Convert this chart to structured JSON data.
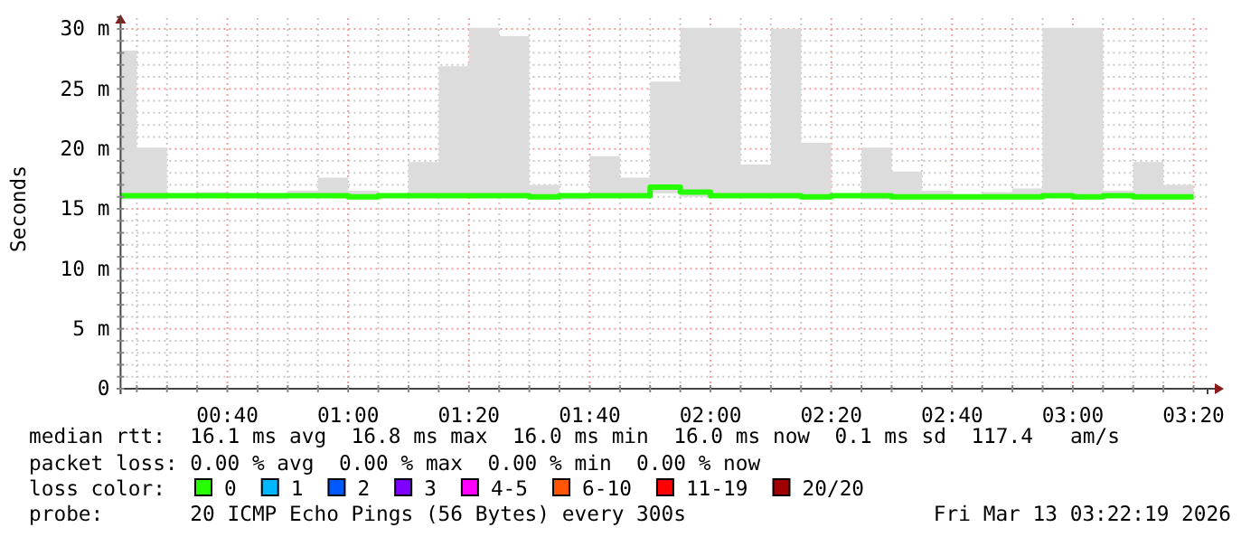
{
  "chart_data": {
    "type": "step",
    "ylabel": "Seconds",
    "legend_title": "loss color:",
    "legend": "bottom",
    "grid": true,
    "line_style": "solid",
    "xlim": [
      0.3719,
      3.3719
    ],
    "ylim": [
      0,
      31
    ],
    "xticks": [
      {
        "value": 0.4167,
        "label": null
      },
      {
        "value": 0.5,
        "label": null
      },
      {
        "value": 0.5833,
        "label": null
      },
      {
        "value": 0.6667,
        "label": "00:40"
      },
      {
        "value": 0.75,
        "label": null
      },
      {
        "value": 0.8333,
        "label": null
      },
      {
        "value": 0.9167,
        "label": null
      },
      {
        "value": 1,
        "label": "01:00"
      },
      {
        "value": 1.0833,
        "label": null
      },
      {
        "value": 1.1667,
        "label": null
      },
      {
        "value": 1.25,
        "label": null
      },
      {
        "value": 1.3333,
        "label": "01:20"
      },
      {
        "value": 1.4167,
        "label": null
      },
      {
        "value": 1.5,
        "label": null
      },
      {
        "value": 1.5833,
        "label": null
      },
      {
        "value": 1.6667,
        "label": "01:40"
      },
      {
        "value": 1.75,
        "label": null
      },
      {
        "value": 1.8333,
        "label": null
      },
      {
        "value": 1.9167,
        "label": null
      },
      {
        "value": 2,
        "label": "02:00"
      },
      {
        "value": 2.0833,
        "label": null
      },
      {
        "value": 2.1667,
        "label": null
      },
      {
        "value": 2.25,
        "label": null
      },
      {
        "value": 2.3333,
        "label": "02:20"
      },
      {
        "value": 2.4167,
        "label": null
      },
      {
        "value": 2.5,
        "label": null
      },
      {
        "value": 2.5833,
        "label": null
      },
      {
        "value": 2.6667,
        "label": "02:40"
      },
      {
        "value": 2.75,
        "label": null
      },
      {
        "value": 2.8333,
        "label": null
      },
      {
        "value": 2.9167,
        "label": null
      },
      {
        "value": 3,
        "label": "03:00"
      },
      {
        "value": 3.0833,
        "label": null
      },
      {
        "value": 3.1667,
        "label": null
      },
      {
        "value": 3.25,
        "label": null
      },
      {
        "value": 3.3333,
        "label": "03:20"
      }
    ],
    "yticks": [
      0,
      {
        "value": 1,
        "label": null
      },
      {
        "value": 2,
        "label": null
      },
      {
        "value": 3,
        "label": null
      },
      {
        "value": 4,
        "label": null
      },
      {
        "value": 5,
        "label": "5 m"
      },
      {
        "value": 6,
        "label": null
      },
      {
        "value": 7,
        "label": null
      },
      {
        "value": 8,
        "label": null
      },
      {
        "value": 9,
        "label": null
      },
      {
        "value": 10,
        "label": "10 m"
      },
      {
        "value": 11,
        "label": null
      },
      {
        "value": 12,
        "label": null
      },
      {
        "value": 13,
        "label": null
      },
      {
        "value": 14,
        "label": null
      },
      {
        "value": 15,
        "label": "15 m"
      },
      {
        "value": 16,
        "label": null
      },
      {
        "value": 17,
        "label": null
      },
      {
        "value": 18,
        "label": null
      },
      {
        "value": 19,
        "label": null
      },
      {
        "value": 20,
        "label": "20 m"
      },
      {
        "value": 21,
        "label": null
      },
      {
        "value": 22,
        "label": null
      },
      {
        "value": 23,
        "label": null
      },
      {
        "value": 24,
        "label": null
      },
      {
        "value": 25,
        "label": "25 m"
      },
      {
        "value": 26,
        "label": null
      },
      {
        "value": 27,
        "label": null
      },
      {
        "value": 28,
        "label": null
      },
      {
        "value": 29,
        "label": null
      },
      {
        "value": 30,
        "label": "30 m"
      }
    ],
    "x": [
      0.3719,
      0.4167,
      0.5,
      0.5833,
      0.6667,
      0.75,
      0.8333,
      0.9167,
      1,
      1.0833,
      1.1667,
      1.25,
      1.3333,
      1.4167,
      1.5,
      1.5833,
      1.6667,
      1.75,
      1.8333,
      1.9167,
      2,
      2.0833,
      2.1667,
      2.25,
      2.3333,
      2.4167,
      2.5,
      2.5833,
      2.6667,
      2.75,
      2.8333,
      2.9167,
      3,
      3.0833,
      3.1667,
      3.25,
      3.3333
    ],
    "series": [
      {
        "name": "0",
        "color": "#26ff00",
        "values": [
          16.1,
          16.1,
          16.1,
          16.1,
          16.1,
          16.1,
          16.1,
          16.1,
          16.0,
          16.1,
          16.1,
          16.1,
          16.1,
          16.1,
          16.0,
          16.1,
          16.1,
          16.1,
          16.8,
          16.4,
          16.1,
          16.1,
          16.1,
          16.0,
          16.1,
          16.1,
          16.0,
          16.0,
          16.0,
          16.0,
          16.0,
          16.1,
          16.0,
          16.1,
          16.0,
          16.0,
          16.0
        ],
        "lower": [
          15.8,
          15.8,
          16.0,
          16.0,
          16.0,
          15.8,
          16.0,
          15.9,
          15.8,
          16.0,
          16.0,
          16.0,
          16.0,
          16.0,
          15.8,
          15.8,
          16.0,
          16.0,
          16.3,
          16.0,
          15.9,
          16.0,
          16.0,
          15.8,
          16.0,
          15.8,
          15.9,
          15.9,
          15.9,
          15.9,
          15.9,
          16.0,
          15.8,
          15.9,
          15.8,
          15.8,
          15.8
        ],
        "upper": [
          28.2,
          20.1,
          16.2,
          16.4,
          16.1,
          16.2,
          16.5,
          17.6,
          16.5,
          16.2,
          18.9,
          26.9,
          30.1,
          29.4,
          17.0,
          16.2,
          19.4,
          17.6,
          25.6,
          30.1,
          30.1,
          18.7,
          30.0,
          20.5,
          16.2,
          20.1,
          18.1,
          16.5,
          16.1,
          16.4,
          16.7,
          30.1,
          30.1,
          16.5,
          18.9,
          17.0,
          17.0
        ]
      },
      {
        "name": "1",
        "color": "#00b8ff",
        "values": [
          null,
          null,
          null,
          null,
          null,
          null,
          null,
          null,
          null,
          null,
          null,
          null,
          null,
          null,
          null,
          null,
          null,
          null,
          null,
          null,
          null,
          null,
          null,
          null,
          null,
          null,
          null,
          null,
          null,
          null,
          null,
          null,
          null,
          null,
          null,
          null,
          null
        ]
      },
      {
        "name": "2",
        "color": "#0059ff",
        "values": [
          null,
          null,
          null,
          null,
          null,
          null,
          null,
          null,
          null,
          null,
          null,
          null,
          null,
          null,
          null,
          null,
          null,
          null,
          null,
          null,
          null,
          null,
          null,
          null,
          null,
          null,
          null,
          null,
          null,
          null,
          null,
          null,
          null,
          null,
          null,
          null,
          null
        ]
      },
      {
        "name": "3",
        "color": "#7e00ff",
        "values": [
          null,
          null,
          null,
          null,
          null,
          null,
          null,
          null,
          null,
          null,
          null,
          null,
          null,
          null,
          null,
          null,
          null,
          null,
          null,
          null,
          null,
          null,
          null,
          null,
          null,
          null,
          null,
          null,
          null,
          null,
          null,
          null,
          null,
          null,
          null,
          null,
          null
        ]
      },
      {
        "name": "4-5",
        "color": "#ff00ff",
        "values": [
          null,
          null,
          null,
          null,
          null,
          null,
          null,
          null,
          null,
          null,
          null,
          null,
          null,
          null,
          null,
          null,
          null,
          null,
          null,
          null,
          null,
          null,
          null,
          null,
          null,
          null,
          null,
          null,
          null,
          null,
          null,
          null,
          null,
          null,
          null,
          null,
          null
        ]
      },
      {
        "name": "6-10",
        "color": "#ff5500",
        "values": [
          null,
          null,
          null,
          null,
          null,
          null,
          null,
          null,
          null,
          null,
          null,
          null,
          null,
          null,
          null,
          null,
          null,
          null,
          null,
          null,
          null,
          null,
          null,
          null,
          null,
          null,
          null,
          null,
          null,
          null,
          null,
          null,
          null,
          null,
          null,
          null,
          null
        ]
      },
      {
        "name": "11-19",
        "color": "#ff0000",
        "values": [
          null,
          null,
          null,
          null,
          null,
          null,
          null,
          null,
          null,
          null,
          null,
          null,
          null,
          null,
          null,
          null,
          null,
          null,
          null,
          null,
          null,
          null,
          null,
          null,
          null,
          null,
          null,
          null,
          null,
          null,
          null,
          null,
          null,
          null,
          null,
          null,
          null
        ]
      },
      {
        "name": "20/20",
        "color": "#a10000",
        "values": [
          null,
          null,
          null,
          null,
          null,
          null,
          null,
          null,
          null,
          null,
          null,
          null,
          null,
          null,
          null,
          null,
          null,
          null,
          null,
          null,
          null,
          null,
          null,
          null,
          null,
          null,
          null,
          null,
          null,
          null,
          null,
          null,
          null,
          null,
          null,
          null,
          null
        ]
      }
    ],
    "annotations": [
      "median rtt:  16.1 ms avg  16.8 ms max  16.0 ms min  16.0 ms now  0.1 ms sd  117.4   am/s",
      "packet loss: 0.00 % avg  0.00 % max  0.00 % min  0.00 % now",
      "probe:       20 ICMP Echo Pings (56 Bytes) every 300s",
      "Fri Mar 13 03:22:19 2026"
    ]
  }
}
